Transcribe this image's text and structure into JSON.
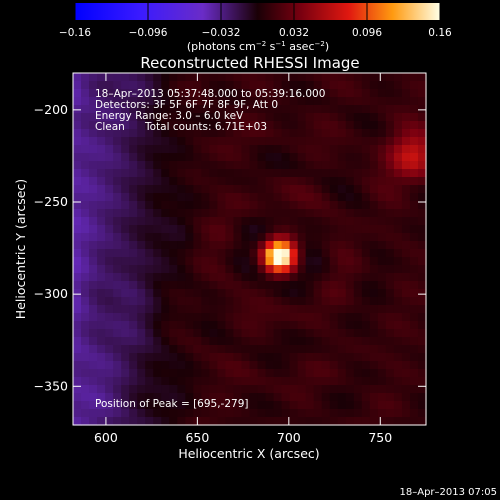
{
  "chart_data": {
    "type": "heatmap",
    "title": "Reconstructed RHESSI Image",
    "xlabel": "Heliocentric X (arcsec)",
    "ylabel": "Heliocentric Y (arcsec)",
    "xlim": [
      582,
      775
    ],
    "ylim": [
      -371,
      -180
    ],
    "xticks": [
      600,
      650,
      700,
      750
    ],
    "yticks": [
      -200,
      -250,
      -300,
      -350
    ],
    "colorbar": {
      "range": [
        -0.16,
        0.16
      ],
      "ticks": [
        "−0.16",
        "−0.096",
        "−0.032",
        "0.032",
        "0.096",
        "0.16"
      ],
      "unit_prefix": "(photons cm",
      "unit_exp1": "−2",
      "unit_mid": " s",
      "unit_exp2": "−1",
      "unit_mid2": " asec",
      "unit_exp3": "−2",
      "unit_suffix": ")"
    },
    "annotations": {
      "time_range": "18–Apr–2013 05:37:48.000 to 05:39:16.000",
      "detectors": "Detectors: 3F 5F 6F 7F 8F 9F, Att 0",
      "energy": "Energy Range: 3.0 – 6.0 keV",
      "clean": "Clean",
      "counts": "Total counts: 6.71E+03",
      "peak": "Position of Peak = [695,-279]"
    },
    "peak": {
      "x": 695,
      "y": -279,
      "value": 0.16
    },
    "features": [
      {
        "x": 695,
        "y": -279,
        "amp": 0.16,
        "sigma": 6
      },
      {
        "x": 768,
        "y": -225,
        "amp": 0.06,
        "sigma": 9
      }
    ],
    "timestamp": "18–Apr–2013 07:05"
  }
}
